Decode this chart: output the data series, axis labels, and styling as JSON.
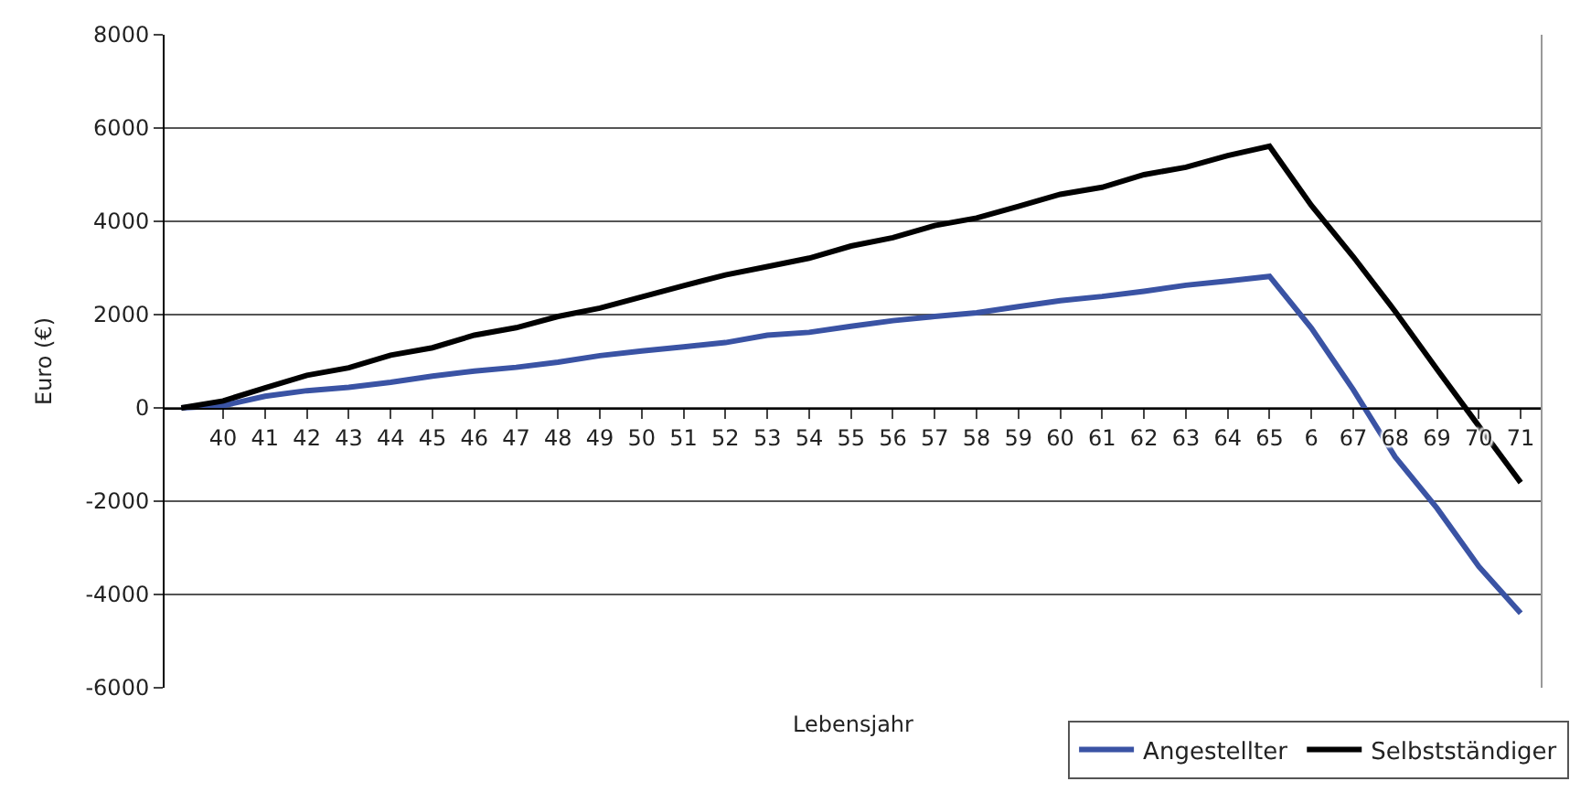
{
  "chart_data": {
    "type": "line",
    "xlabel": "Lebensjahr",
    "ylabel": "Euro (€)",
    "categories": [
      null,
      "40",
      "41",
      "42",
      "43",
      "44",
      "45",
      "46",
      "47",
      "48",
      "49",
      "50",
      "51",
      "52",
      "53",
      "54",
      "55",
      "56",
      "57",
      "58",
      "59",
      "60",
      "61",
      "62",
      "63",
      "64",
      "65",
      "6",
      "67",
      "68",
      "69",
      "70",
      "71"
    ],
    "series": [
      {
        "name": "Angestellter",
        "color": "#3a53a4",
        "values": [
          0,
          50,
          250,
          370,
          440,
          550,
          680,
          790,
          870,
          980,
          1120,
          1220,
          1310,
          1400,
          1560,
          1620,
          1750,
          1870,
          1960,
          2040,
          2170,
          2300,
          2390,
          2500,
          2630,
          2720,
          2820,
          1710,
          390,
          -1050,
          -2150,
          -3400,
          -4400
        ]
      },
      {
        "name": "Selbstständiger",
        "color": "#000000",
        "values": [
          0,
          150,
          430,
          700,
          860,
          1130,
          1290,
          1560,
          1720,
          1960,
          2140,
          2380,
          2620,
          2850,
          3030,
          3210,
          3470,
          3650,
          3910,
          4070,
          4320,
          4580,
          4730,
          5000,
          5160,
          5410,
          5610,
          4340,
          3240,
          2070,
          830,
          -390,
          -1600
        ]
      }
    ],
    "ylim": [
      -6000,
      8000
    ],
    "yticks": [
      -6000,
      -4000,
      -2000,
      0,
      2000,
      4000,
      6000,
      8000
    ],
    "grid": "y",
    "legend": "bottom right",
    "marker": "none",
    "line_style": "solid"
  }
}
